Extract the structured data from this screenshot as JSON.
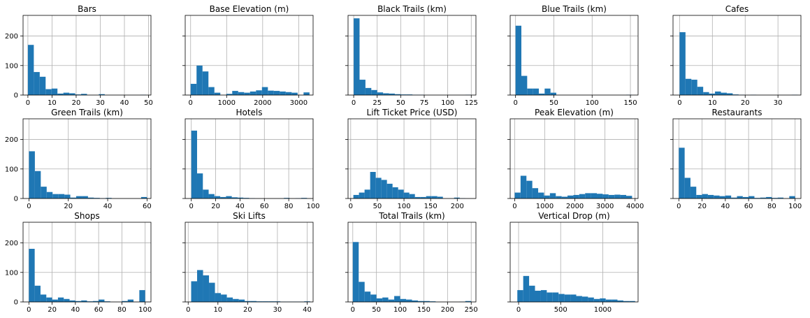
{
  "figure": {
    "bar_color": "#1f77b4",
    "grid_color": "#b0b0b0",
    "sharey": true
  },
  "chart_data": [
    {
      "type": "bar",
      "title": "Bars",
      "xlim": [
        -2,
        51
      ],
      "ylim": [
        0,
        270
      ],
      "xticks": [
        0,
        10,
        20,
        30,
        40,
        50
      ],
      "yticks": [
        0,
        100,
        200
      ],
      "bin_start": 0,
      "bin_width": 2.45,
      "values": [
        170,
        78,
        62,
        20,
        22,
        5,
        8,
        6,
        2,
        4,
        0,
        0,
        3,
        0,
        0,
        0,
        0,
        0,
        0,
        1
      ]
    },
    {
      "type": "bar",
      "title": "Base Elevation (m)",
      "xlim": [
        -150,
        3400
      ],
      "ylim": [
        0,
        270
      ],
      "xticks": [
        0,
        1000,
        2000,
        3000
      ],
      "yticks": [
        0,
        100,
        200
      ],
      "bin_start": 0,
      "bin_width": 165,
      "values": [
        38,
        100,
        80,
        27,
        8,
        0,
        4,
        14,
        10,
        8,
        12,
        16,
        27,
        15,
        14,
        12,
        10,
        8,
        0,
        9
      ]
    },
    {
      "type": "bar",
      "title": "Black Trails (km)",
      "xlim": [
        -6,
        130
      ],
      "ylim": [
        0,
        270
      ],
      "xticks": [
        0,
        25,
        50,
        75,
        100,
        125
      ],
      "yticks": [
        0,
        100,
        200
      ],
      "bin_start": 0,
      "bin_width": 6.25,
      "values": [
        260,
        52,
        24,
        17,
        9,
        6,
        5,
        3,
        2,
        2,
        1,
        1,
        0,
        0,
        0,
        0,
        0,
        0,
        0,
        1
      ]
    },
    {
      "type": "bar",
      "title": "Blue Trails (km)",
      "xlim": [
        -7,
        160
      ],
      "ylim": [
        0,
        270
      ],
      "xticks": [
        0,
        50,
        100,
        150
      ],
      "yticks": [
        0,
        100,
        200
      ],
      "bin_start": 0,
      "bin_width": 7.6,
      "values": [
        235,
        65,
        22,
        22,
        5,
        22,
        8,
        0,
        0,
        0,
        0,
        0,
        0,
        0,
        0,
        0,
        0,
        0,
        0,
        1
      ]
    },
    {
      "type": "bar",
      "title": "Cafes",
      "xlim": [
        -2,
        37
      ],
      "ylim": [
        0,
        270
      ],
      "xticks": [
        0,
        10,
        20,
        30
      ],
      "yticks": [
        0,
        100,
        200
      ],
      "bin_start": 0,
      "bin_width": 1.8,
      "values": [
        213,
        55,
        52,
        28,
        10,
        5,
        12,
        8,
        6,
        2,
        1,
        0,
        1,
        0,
        0,
        0,
        0,
        0,
        0,
        1
      ]
    },
    {
      "type": "bar",
      "title": "Green Trails (km)",
      "xlim": [
        -3,
        62
      ],
      "ylim": [
        0,
        270
      ],
      "xticks": [
        0,
        20,
        40,
        60
      ],
      "yticks": [
        0,
        100,
        200
      ],
      "bin_start": 0,
      "bin_width": 3,
      "values": [
        160,
        93,
        40,
        22,
        15,
        15,
        13,
        3,
        8,
        8,
        3,
        2,
        1,
        2,
        0,
        0,
        0,
        0,
        0,
        5
      ]
    },
    {
      "type": "bar",
      "title": "Hotels",
      "xlim": [
        -5,
        100
      ],
      "ylim": [
        0,
        270
      ],
      "xticks": [
        0,
        20,
        40,
        60,
        80,
        100
      ],
      "yticks": [
        0,
        100,
        200
      ],
      "bin_start": 0,
      "bin_width": 4.75,
      "values": [
        230,
        85,
        30,
        15,
        8,
        5,
        8,
        4,
        3,
        2,
        1,
        0,
        0,
        0,
        0,
        0,
        2,
        0,
        1,
        2
      ]
    },
    {
      "type": "bar",
      "title": "Lift Ticket Price (USD)",
      "xlim": [
        -5,
        235
      ],
      "ylim": [
        0,
        270
      ],
      "xticks": [
        0,
        50,
        100,
        150,
        200
      ],
      "yticks": [
        0,
        100,
        200
      ],
      "bin_start": 5,
      "bin_width": 10.5,
      "values": [
        12,
        20,
        30,
        90,
        70,
        63,
        50,
        38,
        30,
        20,
        15,
        5,
        5,
        8,
        8,
        6,
        0,
        0,
        3,
        1
      ]
    },
    {
      "type": "bar",
      "title": "Peak Elevation (m)",
      "xlim": [
        -150,
        4100
      ],
      "ylim": [
        0,
        270
      ],
      "xticks": [
        0,
        1000,
        2000,
        3000,
        4000
      ],
      "yticks": [
        0,
        100,
        200
      ],
      "bin_start": 0,
      "bin_width": 195,
      "values": [
        20,
        77,
        60,
        35,
        20,
        10,
        18,
        8,
        6,
        10,
        12,
        15,
        18,
        18,
        16,
        14,
        12,
        13,
        12,
        9
      ]
    },
    {
      "type": "bar",
      "title": "Restaurants",
      "xlim": [
        -5,
        105
      ],
      "ylim": [
        0,
        270
      ],
      "xticks": [
        0,
        20,
        40,
        60,
        80,
        100
      ],
      "yticks": [
        0,
        100,
        200
      ],
      "bin_start": 0,
      "bin_width": 5,
      "values": [
        172,
        70,
        40,
        12,
        15,
        12,
        10,
        8,
        10,
        3,
        8,
        5,
        8,
        2,
        3,
        5,
        2,
        3,
        0,
        8
      ]
    },
    {
      "type": "bar",
      "title": "Shops",
      "xlim": [
        -5,
        105
      ],
      "ylim": [
        0,
        270
      ],
      "xticks": [
        0,
        20,
        40,
        60,
        80,
        100
      ],
      "yticks": [
        0,
        100,
        200
      ],
      "bin_start": 0,
      "bin_width": 5,
      "values": [
        180,
        55,
        25,
        15,
        8,
        15,
        10,
        5,
        3,
        5,
        2,
        3,
        8,
        2,
        0,
        0,
        3,
        8,
        0,
        40
      ]
    },
    {
      "type": "bar",
      "title": "Ski Lifts",
      "xlim": [
        -1,
        42
      ],
      "ylim": [
        0,
        270
      ],
      "xticks": [
        0,
        10,
        20,
        30,
        40
      ],
      "yticks": [
        0,
        100,
        200
      ],
      "bin_start": 1,
      "bin_width": 2,
      "values": [
        70,
        108,
        90,
        65,
        30,
        25,
        15,
        10,
        8,
        3,
        3,
        2,
        2,
        2,
        2,
        1,
        1,
        1,
        1,
        2
      ]
    },
    {
      "type": "bar",
      "title": "Total Trails (km)",
      "xlim": [
        -10,
        260
      ],
      "ylim": [
        0,
        270
      ],
      "xticks": [
        0,
        50,
        100,
        150,
        200,
        250
      ],
      "yticks": [
        0,
        100,
        200
      ],
      "bin_start": 0,
      "bin_width": 12.5,
      "values": [
        203,
        68,
        35,
        25,
        12,
        15,
        8,
        20,
        10,
        8,
        5,
        3,
        3,
        2,
        0,
        0,
        0,
        0,
        1,
        3
      ]
    },
    {
      "type": "bar",
      "title": "Vertical Drop (m)",
      "xlim": [
        -100,
        1420
      ],
      "ylim": [
        0,
        270
      ],
      "xticks": [
        0,
        500,
        1000
      ],
      "yticks": [
        0,
        100,
        200
      ],
      "bin_start": -15,
      "bin_width": 70,
      "values": [
        40,
        88,
        55,
        38,
        40,
        32,
        32,
        27,
        25,
        25,
        20,
        18,
        15,
        10,
        12,
        8,
        8,
        5,
        3,
        3
      ]
    }
  ]
}
